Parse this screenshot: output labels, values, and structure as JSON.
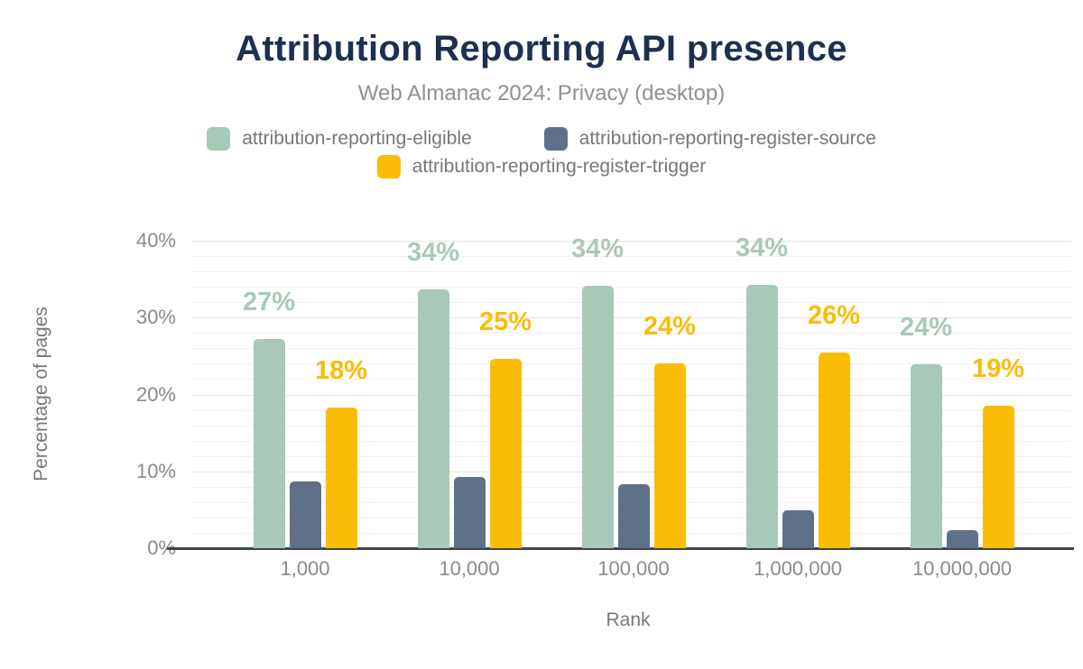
{
  "title": "Attribution Reporting API presence",
  "subtitle": "Web Almanac 2024: Privacy (desktop)",
  "colors": {
    "title_text": "#1e3050",
    "subtitle_text": "#8f9093",
    "legend_text": "#76777a",
    "tick_text": "#898a8d",
    "axis_line": "#40464d",
    "grid_minor": "#f1f1f1",
    "grid_major": "#e4e4e4",
    "eligible": "#a8c9b8",
    "source": "#5f7089",
    "trigger": "#fbbc05"
  },
  "legend": {
    "rows": [
      [
        0,
        1
      ],
      [
        2
      ]
    ]
  },
  "chart_data": {
    "type": "bar",
    "title": "Attribution Reporting API presence",
    "subtitle": "Web Almanac 2024: Privacy (desktop)",
    "xlabel": "Rank",
    "ylabel": "Percentage of pages",
    "categories": [
      "1,000",
      "10,000",
      "100,000",
      "1,000,000",
      "10,000,000"
    ],
    "series": [
      {
        "name": "attribution-reporting-eligible",
        "color": "#a8c9b8",
        "values": [
          27.2,
          33.7,
          34.1,
          34.2,
          23.9
        ],
        "labels": [
          "27%",
          "34%",
          "34%",
          "34%",
          "24%"
        ]
      },
      {
        "name": "attribution-reporting-register-source",
        "color": "#5f7089",
        "values": [
          8.7,
          9.3,
          8.3,
          4.9,
          2.3
        ],
        "labels": [
          "",
          "",
          "",
          "",
          ""
        ]
      },
      {
        "name": "attribution-reporting-register-trigger",
        "color": "#fbbc05",
        "values": [
          18.3,
          24.6,
          24.1,
          25.5,
          18.5
        ],
        "labels": [
          "18%",
          "25%",
          "24%",
          "26%",
          "19%"
        ]
      }
    ],
    "ylim": [
      0,
      40
    ],
    "yticks": [
      "0%",
      "10%",
      "20%",
      "30%",
      "40%"
    ],
    "ytick_values": [
      0,
      10,
      20,
      30,
      40
    ],
    "grid": "horizontal minor lines every 2%, major every 10%",
    "legend_position": "top",
    "bar_label_position": "above bars, colored same as series"
  }
}
